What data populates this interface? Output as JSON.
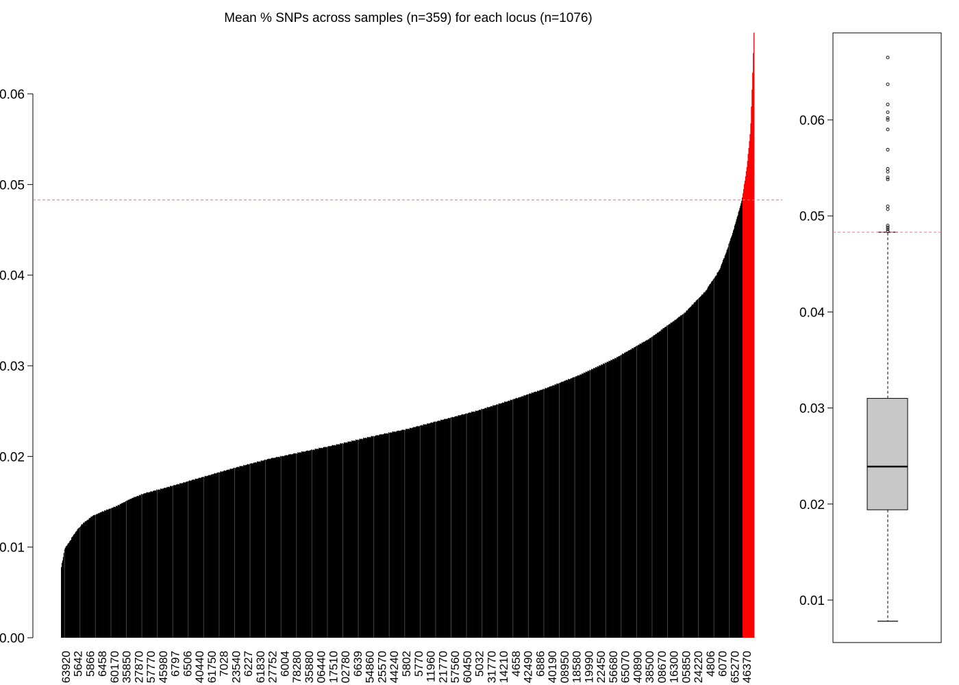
{
  "chart_data": [
    {
      "type": "bar",
      "title": "Mean % SNPs across samples (n=359) for each locus (n=1076)",
      "xlabel": "",
      "ylabel": "",
      "ylim": [
        0,
        0.067
      ],
      "yticks": [
        "0.00",
        "0.01",
        "0.02",
        "0.03",
        "0.04",
        "0.05",
        "0.06"
      ],
      "n_loci": 1076,
      "threshold": 0.0483,
      "threshold_color": "#e87a7a",
      "bar_color": "#000000",
      "highlight_color": "#ff0000",
      "highlight_count": 18,
      "sorted_profile": [
        [
          0,
          0.0078
        ],
        [
          0.005,
          0.0098
        ],
        [
          0.012,
          0.0106
        ],
        [
          0.02,
          0.0116
        ],
        [
          0.03,
          0.0125
        ],
        [
          0.045,
          0.0134
        ],
        [
          0.06,
          0.0139
        ],
        [
          0.08,
          0.0145
        ],
        [
          0.1,
          0.0153
        ],
        [
          0.12,
          0.0159
        ],
        [
          0.15,
          0.0165
        ],
        [
          0.2,
          0.0176
        ],
        [
          0.25,
          0.0187
        ],
        [
          0.3,
          0.0197
        ],
        [
          0.35,
          0.0205
        ],
        [
          0.4,
          0.0213
        ],
        [
          0.45,
          0.0222
        ],
        [
          0.5,
          0.023
        ],
        [
          0.55,
          0.024
        ],
        [
          0.6,
          0.025
        ],
        [
          0.65,
          0.0262
        ],
        [
          0.7,
          0.0275
        ],
        [
          0.75,
          0.029
        ],
        [
          0.8,
          0.0308
        ],
        [
          0.85,
          0.033
        ],
        [
          0.9,
          0.0358
        ],
        [
          0.93,
          0.0382
        ],
        [
          0.95,
          0.0405
        ],
        [
          0.96,
          0.0425
        ],
        [
          0.97,
          0.0448
        ],
        [
          0.98,
          0.0475
        ],
        [
          0.983,
          0.0484
        ],
        [
          0.99,
          0.052
        ],
        [
          0.995,
          0.056
        ],
        [
          0.998,
          0.062
        ],
        [
          1.0,
          0.0667
        ]
      ],
      "xtick_labels": [
        "63920",
        "5642",
        "5866",
        "6458",
        "60170",
        "35850",
        "27870",
        "57770",
        "45980",
        "6797",
        "6506",
        "40440",
        "61750",
        "7028",
        "23540",
        "6227",
        "61830",
        "27752",
        "6004",
        "78280",
        "35880",
        "06440",
        "17510",
        "02780",
        "6639",
        "54860",
        "25570",
        "44240",
        "5802",
        "5770",
        "11960",
        "21770",
        "57560",
        "60450",
        "5032",
        "31770",
        "14210",
        "4658",
        "42490",
        "6886",
        "40190",
        "08950",
        "18580",
        "19990",
        "22450",
        "56680",
        "65070",
        "40890",
        "38500",
        "08670",
        "16300",
        "05850",
        "24220",
        "4806",
        "6070",
        "65270",
        "46370"
      ]
    },
    {
      "type": "boxplot",
      "ylim": [
        0.0055,
        0.0695
      ],
      "yticks": [
        "0.01",
        "0.02",
        "0.03",
        "0.04",
        "0.05",
        "0.06"
      ],
      "box_fill": "#c8c8c8",
      "whisker_low": 0.0078,
      "q1": 0.0194,
      "median": 0.0239,
      "q3": 0.031,
      "whisker_high": 0.0483,
      "threshold": 0.0483,
      "outliers": [
        0.0665,
        0.0637,
        0.0616,
        0.0608,
        0.0602,
        0.06,
        0.059,
        0.0569,
        0.0549,
        0.0546,
        0.054,
        0.0538,
        0.051,
        0.0507,
        0.049,
        0.0488,
        0.0486,
        0.0484
      ]
    }
  ]
}
